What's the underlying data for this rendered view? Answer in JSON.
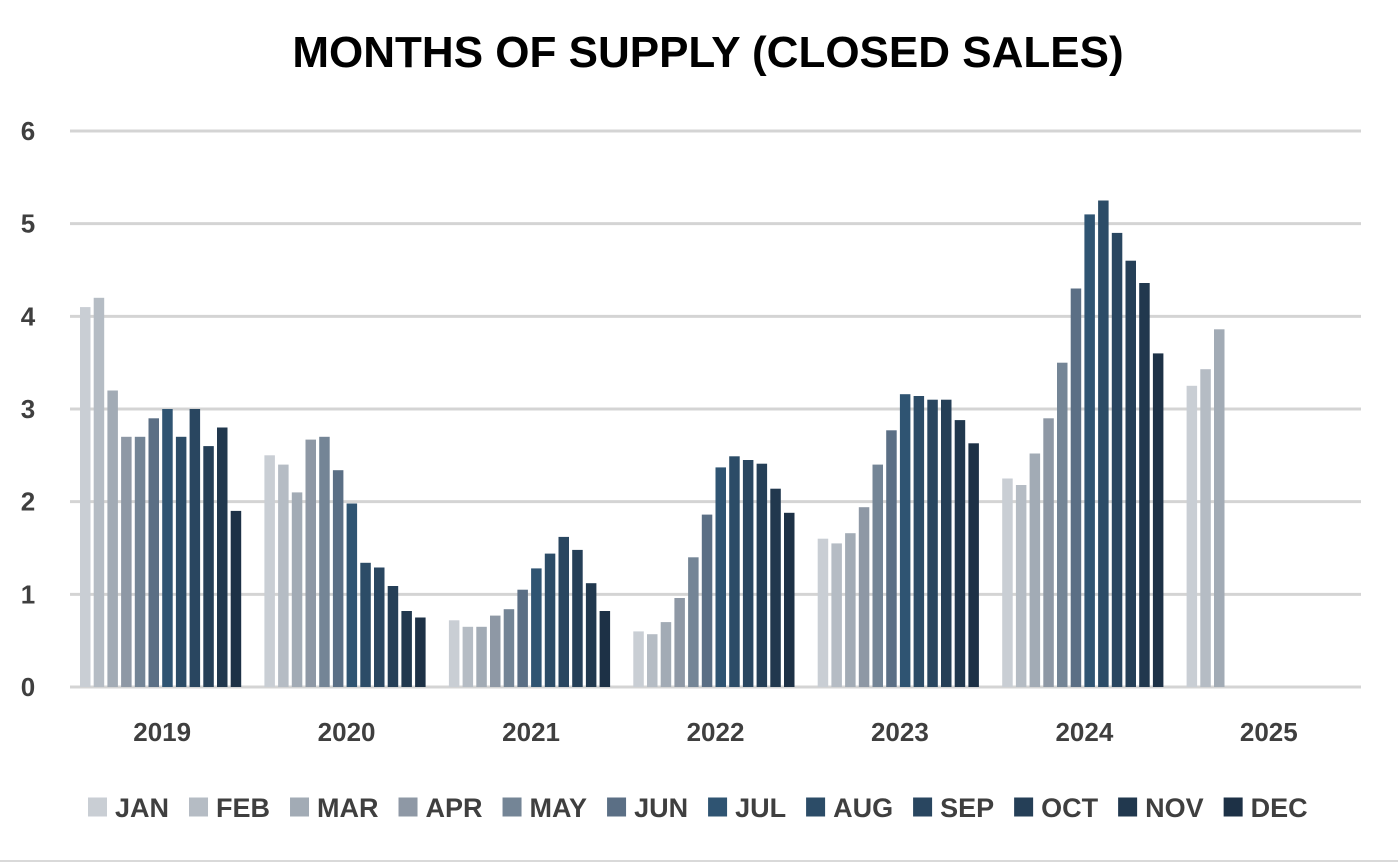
{
  "chart_data": {
    "type": "bar",
    "title": "MONTHS OF SUPPLY (CLOSED SALES)",
    "xlabel": "",
    "ylabel": "",
    "ylim": [
      0,
      6
    ],
    "yticks": [
      0,
      1,
      2,
      3,
      4,
      5,
      6
    ],
    "grid": true,
    "legend_position": "bottom",
    "categories": [
      "2019",
      "2020",
      "2021",
      "2022",
      "2023",
      "2024",
      "2025"
    ],
    "series": [
      {
        "name": "JAN",
        "color": "#c9ced4",
        "values": [
          4.1,
          2.5,
          0.72,
          0.6,
          1.6,
          2.25,
          3.25
        ]
      },
      {
        "name": "FEB",
        "color": "#b5bcc4",
        "values": [
          4.2,
          2.4,
          0.65,
          0.57,
          1.55,
          2.18,
          3.43
        ]
      },
      {
        "name": "MAR",
        "color": "#a2abb5",
        "values": [
          3.2,
          2.1,
          0.65,
          0.7,
          1.66,
          2.52,
          3.86
        ]
      },
      {
        "name": "APR",
        "color": "#8e98a5",
        "values": [
          2.7,
          2.67,
          0.77,
          0.96,
          1.94,
          2.9,
          null
        ]
      },
      {
        "name": "MAY",
        "color": "#748596",
        "values": [
          2.7,
          2.7,
          0.84,
          1.4,
          2.4,
          3.5,
          null
        ]
      },
      {
        "name": "JUN",
        "color": "#5b6f85",
        "values": [
          2.9,
          2.34,
          1.05,
          1.86,
          2.77,
          4.3,
          null
        ]
      },
      {
        "name": "JUL",
        "color": "#2f5472",
        "values": [
          3.0,
          1.98,
          1.28,
          2.37,
          3.16,
          5.1,
          null
        ]
      },
      {
        "name": "AUG",
        "color": "#2c4c67",
        "values": [
          2.7,
          1.34,
          1.44,
          2.49,
          3.14,
          5.25,
          null
        ]
      },
      {
        "name": "SEP",
        "color": "#294660",
        "values": [
          3.0,
          1.29,
          1.62,
          2.45,
          3.1,
          4.9,
          null
        ]
      },
      {
        "name": "OCT",
        "color": "#253f57",
        "values": [
          2.6,
          1.09,
          1.48,
          2.41,
          3.1,
          4.6,
          null
        ]
      },
      {
        "name": "NOV",
        "color": "#21384e",
        "values": [
          2.8,
          0.82,
          1.12,
          2.14,
          2.88,
          4.36,
          null
        ]
      },
      {
        "name": "DEC",
        "color": "#1d3146",
        "values": [
          1.9,
          0.75,
          0.82,
          1.88,
          2.63,
          3.6,
          null
        ]
      }
    ]
  }
}
